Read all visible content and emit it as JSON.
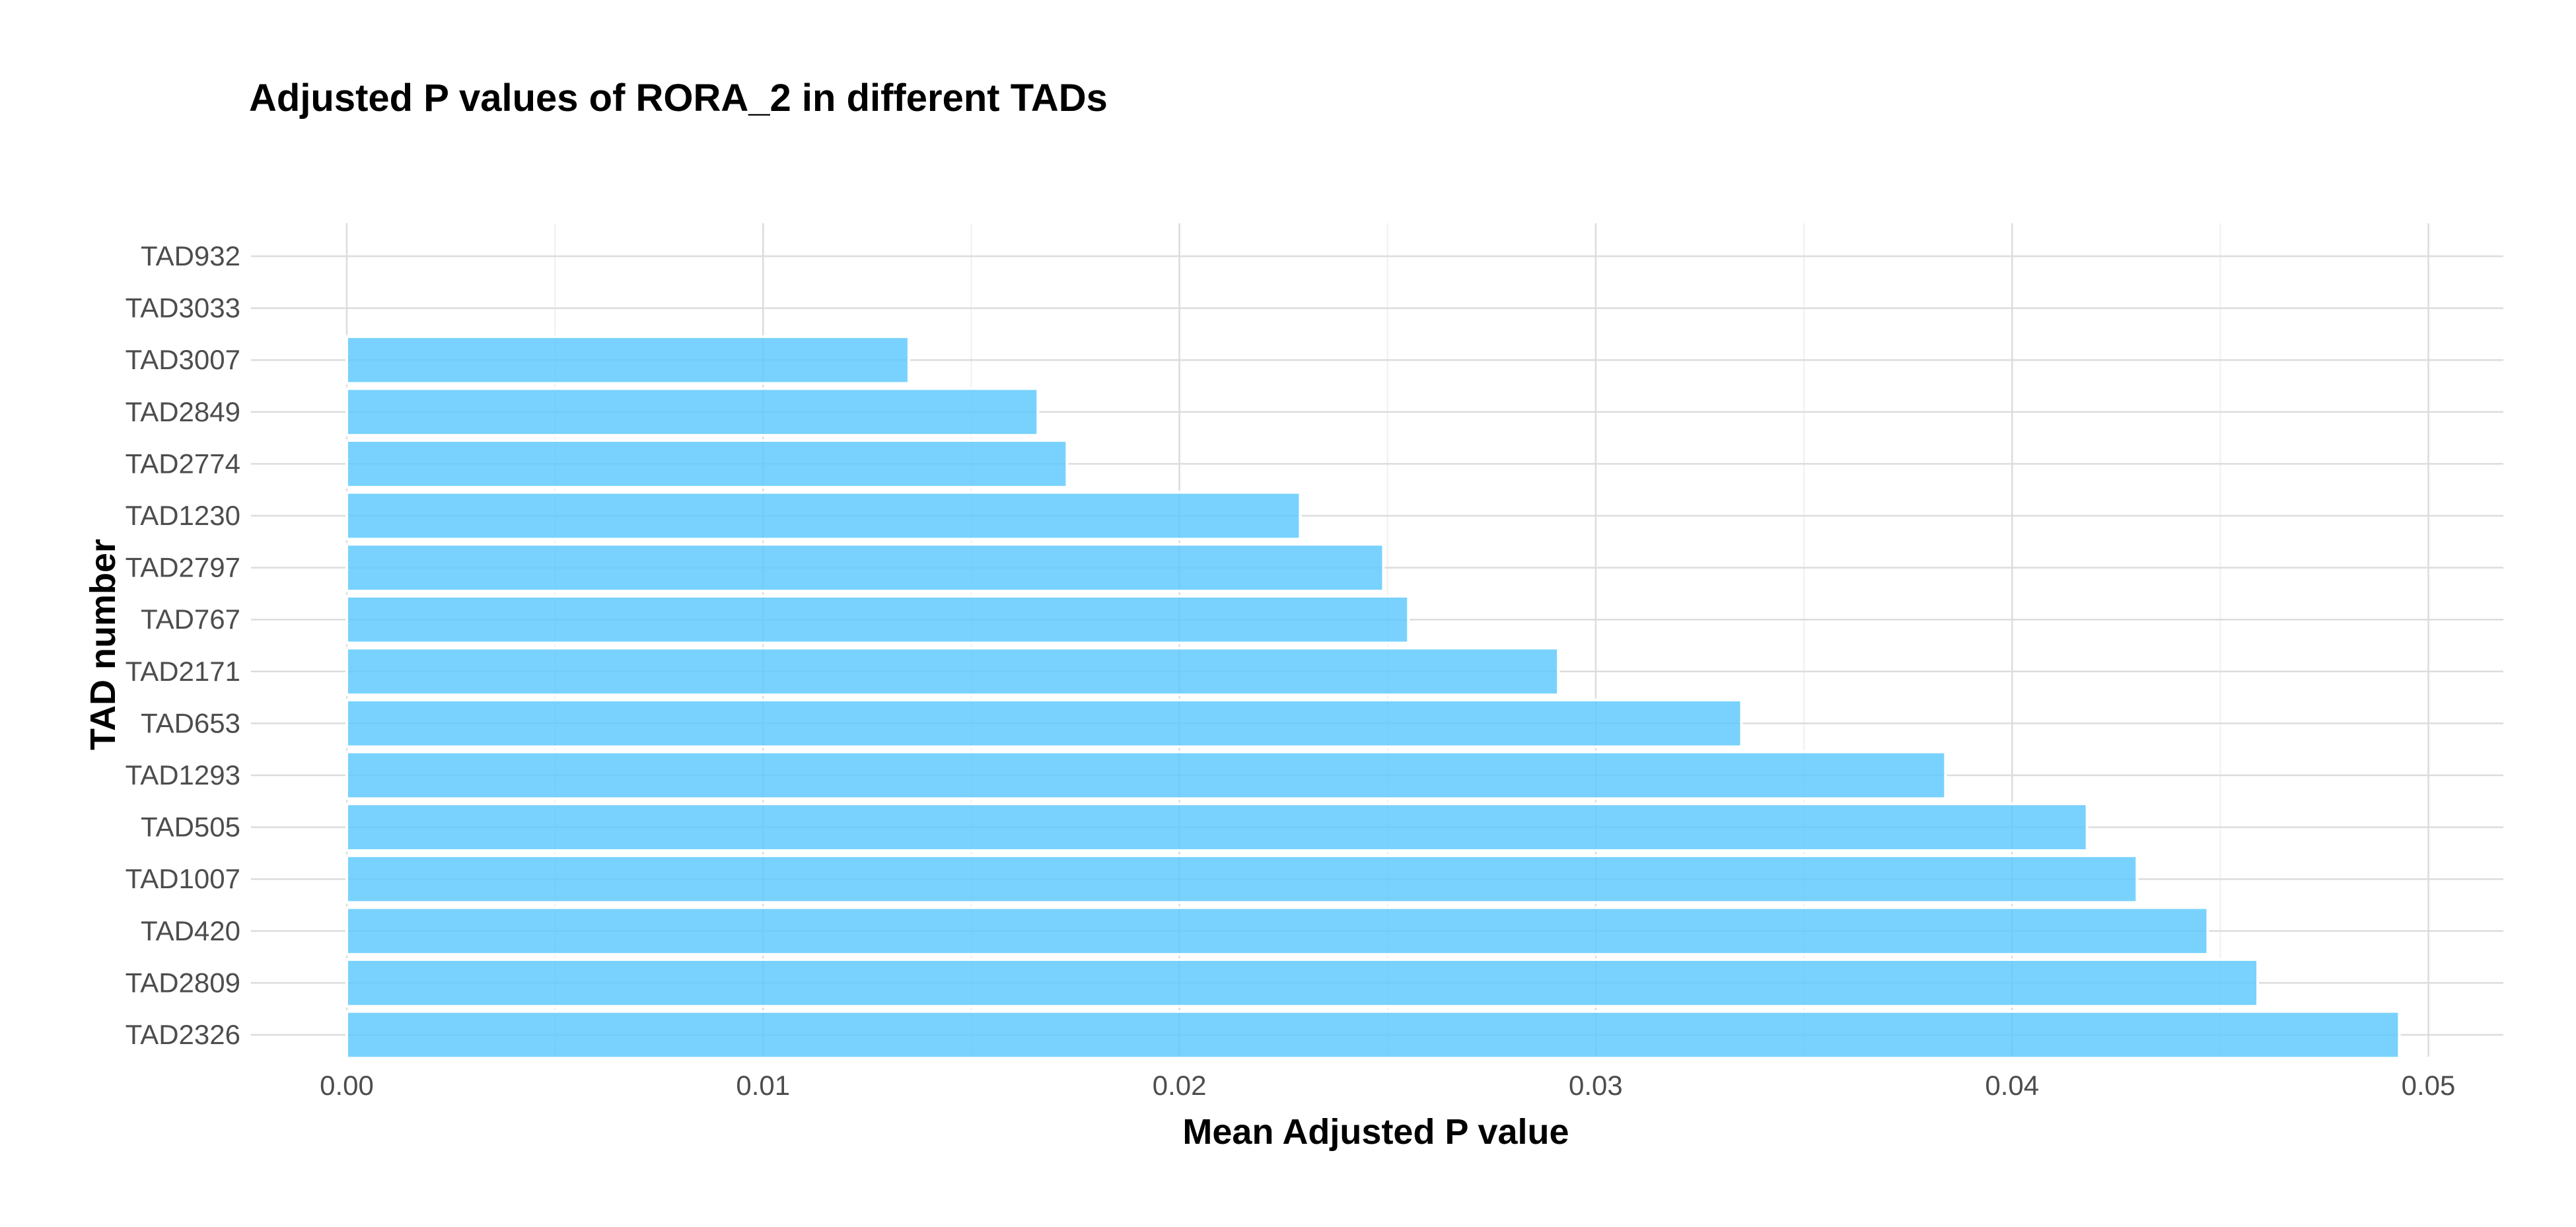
{
  "chart_data": {
    "type": "bar",
    "orientation": "horizontal",
    "title": "Adjusted P values of RORA_2 in different TADs",
    "xlabel": "Mean Adjusted P value",
    "ylabel": "TAD number",
    "categories": [
      "TAD932",
      "TAD3033",
      "TAD3007",
      "TAD2849",
      "TAD2774",
      "TAD1230",
      "TAD2797",
      "TAD767",
      "TAD2171",
      "TAD653",
      "TAD1293",
      "TAD505",
      "TAD1007",
      "TAD420",
      "TAD2809",
      "TAD2326"
    ],
    "values": [
      0.0,
      0.0,
      0.0135,
      0.0166,
      0.0173,
      0.0229,
      0.0249,
      0.0255,
      0.0291,
      0.0335,
      0.0384,
      0.0418,
      0.043,
      0.0447,
      0.0459,
      0.0493
    ],
    "xlim": [
      -0.0023,
      0.0518
    ],
    "xticks": [
      0.0,
      0.01,
      0.02,
      0.03,
      0.04,
      0.05
    ],
    "xtick_labels": [
      "0.00",
      "0.01",
      "0.02",
      "0.03",
      "0.04",
      "0.05"
    ],
    "grid": true,
    "bar_color": "#5BC8FC"
  }
}
